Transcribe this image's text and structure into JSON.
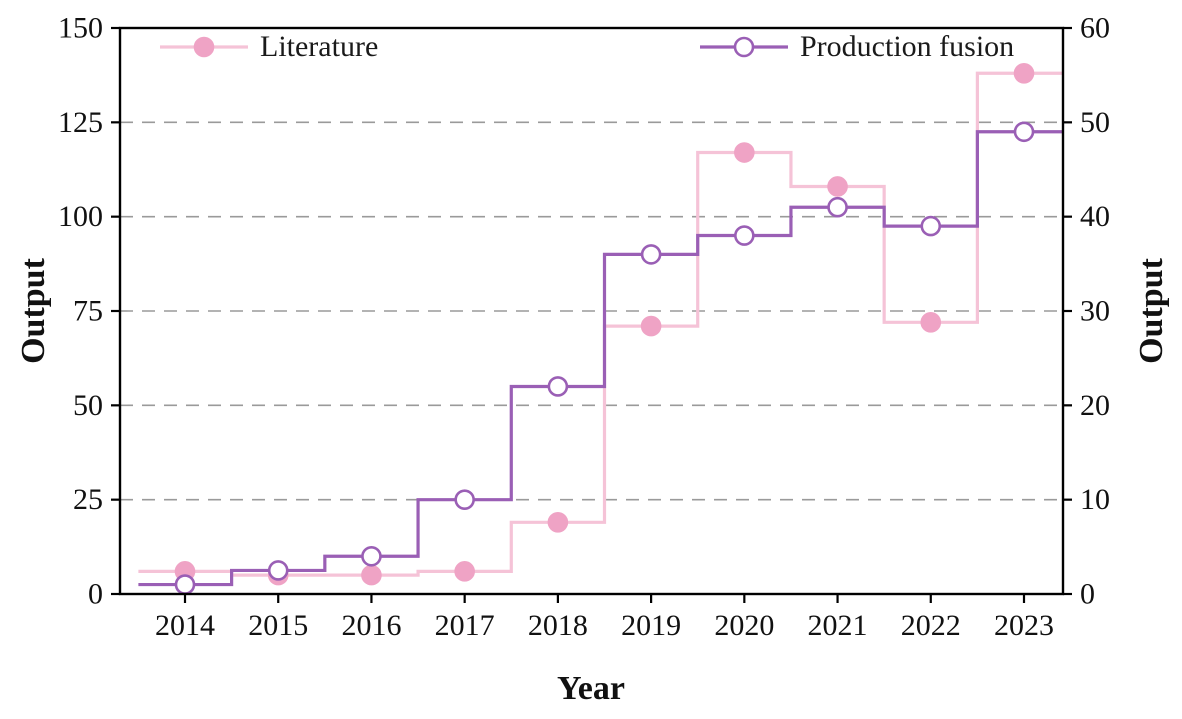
{
  "chart_data": {
    "type": "line",
    "subtype": "step-mid",
    "title": "",
    "xlabel": "Year",
    "ylabel_left": "Output",
    "ylabel_right": "Output",
    "x": [
      2014,
      2015,
      2016,
      2017,
      2018,
      2019,
      2020,
      2021,
      2022,
      2023
    ],
    "x_tick_labels": [
      "2014",
      "2015",
      "2016",
      "2017",
      "2018",
      "2019",
      "2020",
      "2021",
      "2022",
      "2023"
    ],
    "left_axis": {
      "min": 0,
      "max": 150,
      "ticks": [
        0,
        25,
        50,
        75,
        100,
        125,
        150
      ]
    },
    "right_axis": {
      "min": 0,
      "max": 60,
      "ticks": [
        0,
        10,
        20,
        30,
        40,
        50,
        60
      ]
    },
    "grid": {
      "axis": "left",
      "values": [
        25,
        50,
        75,
        100,
        125
      ],
      "style": "dashed",
      "color": "#9a9a9a"
    },
    "legend_position": "top-inside",
    "series": [
      {
        "name": "Literature",
        "axis": "left",
        "color": "#f5c3d7",
        "marker": "filled-circle",
        "marker_fill": "#efa3c5",
        "values": [
          6,
          5,
          5,
          6,
          19,
          71,
          117,
          108,
          72,
          138
        ]
      },
      {
        "name": "Production fusion",
        "axis": "right",
        "color": "#9a5fb5",
        "marker": "open-circle",
        "marker_fill": "#ffffff",
        "values": [
          1,
          2.5,
          4,
          10,
          22,
          36,
          38,
          41,
          39,
          49
        ]
      }
    ]
  }
}
